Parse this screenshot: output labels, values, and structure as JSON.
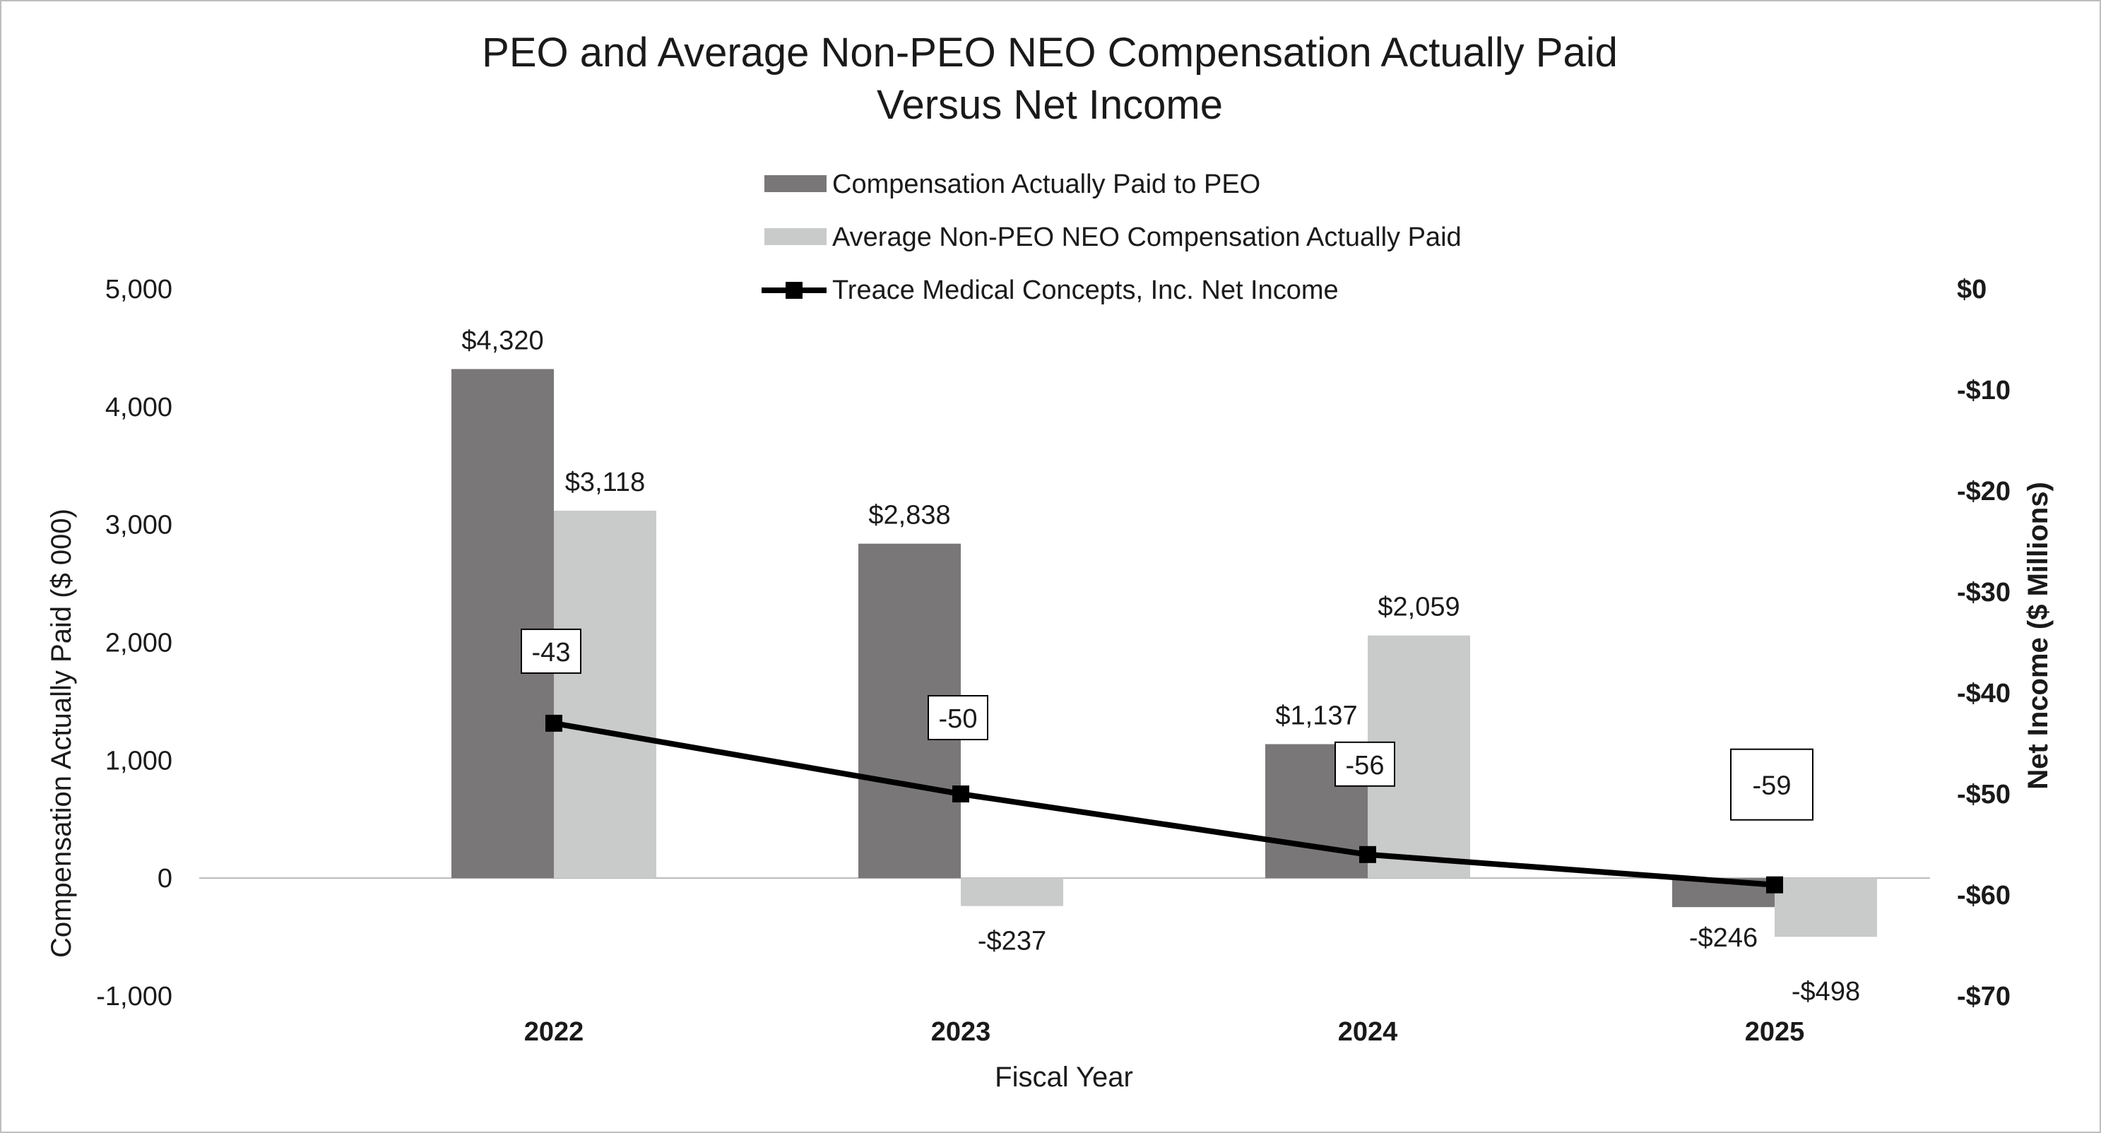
{
  "chart_data": {
    "type": "bar",
    "title_lines": [
      "PEO and Average Non-PEO NEO Compensation Actually Paid",
      "Versus Net Income"
    ],
    "xlabel": "Fiscal Year",
    "ylabel": "Compensation Actually Paid ($ 000)",
    "y2label": "Net Income ($ Millions)",
    "categories": [
      "2022",
      "2023",
      "2024",
      "2025"
    ],
    "ylim": [
      -1000,
      5000
    ],
    "yticks": [
      "5,000",
      "4,000",
      "3,000",
      "2,000",
      "1,000",
      "0",
      "-1,000"
    ],
    "ytick_values": [
      5000,
      4000,
      3000,
      2000,
      1000,
      0,
      -1000
    ],
    "y2lim": [
      -70,
      0
    ],
    "y2ticks": [
      "$0",
      "-$10",
      "-$20",
      "-$30",
      "-$40",
      "-$50",
      "-$60",
      "-$70"
    ],
    "y2tick_values": [
      0,
      -10,
      -20,
      -30,
      -40,
      -50,
      -60,
      -70
    ],
    "series": [
      {
        "name": "Compensation Actually Paid to PEO",
        "kind": "bar",
        "color": "#7a7778",
        "values": [
          4320,
          2838,
          1137,
          -246
        ],
        "labels": [
          "$4,320",
          "$2,838",
          "$1,137",
          "-$246"
        ]
      },
      {
        "name": "Average Non-PEO NEO Compensation Actually Paid",
        "kind": "bar",
        "color": "#c9caca",
        "values": [
          3118,
          -237,
          2059,
          -498
        ],
        "labels": [
          "$3,118",
          "-$237",
          "$2,059",
          "-$498"
        ]
      },
      {
        "name": "Treace Medical Concepts, Inc. Net Income",
        "kind": "line",
        "axis": "right",
        "color": "#000000",
        "values": [
          -43,
          -50,
          -56,
          -59
        ],
        "labels": [
          "-43",
          "-50",
          "-56",
          "-59"
        ]
      }
    ],
    "legend_position": "top-center",
    "grid": false
  }
}
